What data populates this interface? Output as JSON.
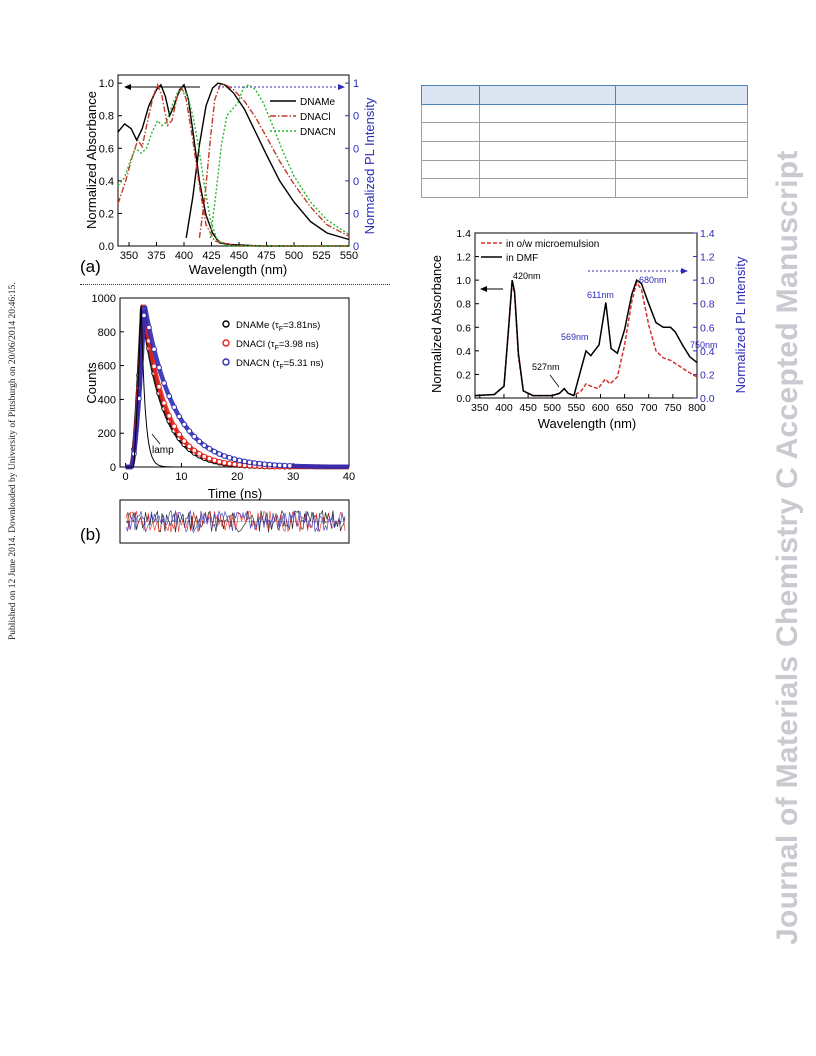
{
  "page": {
    "side_note": "Published on 12 June 2014. Downloaded by University of Pittsburgh on 20/06/2014 20:46:15.",
    "watermark": "Journal of Materials Chemistry C Accepted Manuscript"
  },
  "chart_data": [
    {
      "id": "fig-a",
      "type": "line",
      "panel_label": "(a)",
      "xlabel": "Wavelength (nm)",
      "ylabel_left": "Normalized Absorbance",
      "ylabel_right": "Normalized PL Intensity",
      "xlim": [
        340,
        550
      ],
      "ylim": [
        0,
        1.05
      ],
      "xticks": [
        350,
        375,
        400,
        425,
        450,
        475,
        500,
        525,
        550
      ],
      "yticks": [
        "0.0",
        "0.2",
        "0.4",
        "0.6",
        "0.8",
        "1.0"
      ],
      "series": [
        {
          "name": "DNAMe",
          "style": "solid",
          "color": "#000000",
          "absorbance": [
            [
              340,
              0.7
            ],
            [
              346,
              0.75
            ],
            [
              352,
              0.72
            ],
            [
              357,
              0.65
            ],
            [
              362,
              0.72
            ],
            [
              368,
              0.86
            ],
            [
              375,
              0.96
            ],
            [
              379,
              0.99
            ],
            [
              383,
              0.92
            ],
            [
              387,
              0.8
            ],
            [
              391,
              0.86
            ],
            [
              396,
              0.96
            ],
            [
              400,
              0.99
            ],
            [
              404,
              0.9
            ],
            [
              409,
              0.66
            ],
            [
              414,
              0.4
            ],
            [
              420,
              0.19
            ],
            [
              426,
              0.08
            ],
            [
              432,
              0.02
            ],
            [
              440,
              0.01
            ],
            [
              470,
              0.0
            ],
            [
              550,
              0.0
            ]
          ],
          "pl": [
            [
              402,
              0.05
            ],
            [
              408,
              0.3
            ],
            [
              414,
              0.62
            ],
            [
              420,
              0.86
            ],
            [
              426,
              0.97
            ],
            [
              431,
              1.0
            ],
            [
              437,
              0.99
            ],
            [
              445,
              0.94
            ],
            [
              455,
              0.84
            ],
            [
              465,
              0.7
            ],
            [
              475,
              0.56
            ],
            [
              487,
              0.4
            ],
            [
              500,
              0.27
            ],
            [
              515,
              0.15
            ],
            [
              530,
              0.08
            ],
            [
              550,
              0.04
            ]
          ]
        },
        {
          "name": "DNACl",
          "style": "dashdot",
          "color": "#c0392b",
          "absorbance": [
            [
              340,
              0.26
            ],
            [
              347,
              0.4
            ],
            [
              353,
              0.55
            ],
            [
              358,
              0.65
            ],
            [
              362,
              0.61
            ],
            [
              367,
              0.77
            ],
            [
              372,
              0.92
            ],
            [
              376,
              0.99
            ],
            [
              380,
              0.92
            ],
            [
              385,
              0.74
            ],
            [
              389,
              0.77
            ],
            [
              394,
              0.92
            ],
            [
              398,
              0.97
            ],
            [
              402,
              0.9
            ],
            [
              408,
              0.65
            ],
            [
              414,
              0.37
            ],
            [
              420,
              0.13
            ],
            [
              428,
              0.03
            ],
            [
              450,
              0.0
            ],
            [
              550,
              0.0
            ]
          ],
          "pl": [
            [
              414,
              0.05
            ],
            [
              419,
              0.3
            ],
            [
              424,
              0.66
            ],
            [
              428,
              0.9
            ],
            [
              433,
              0.99
            ],
            [
              438,
              0.99
            ],
            [
              445,
              0.96
            ],
            [
              455,
              0.89
            ],
            [
              465,
              0.79
            ],
            [
              475,
              0.67
            ],
            [
              487,
              0.52
            ],
            [
              500,
              0.38
            ],
            [
              515,
              0.24
            ],
            [
              530,
              0.13
            ],
            [
              550,
              0.06
            ]
          ]
        },
        {
          "name": "DNACN",
          "style": "dotted",
          "color": "#2db52d",
          "absorbance": [
            [
              340,
              0.37
            ],
            [
              346,
              0.42
            ],
            [
              351,
              0.52
            ],
            [
              356,
              0.6
            ],
            [
              361,
              0.57
            ],
            [
              366,
              0.6
            ],
            [
              371,
              0.7
            ],
            [
              376,
              0.77
            ],
            [
              380,
              0.74
            ],
            [
              384,
              0.76
            ],
            [
              389,
              0.86
            ],
            [
              394,
              0.94
            ],
            [
              398,
              0.96
            ],
            [
              403,
              0.93
            ],
            [
              408,
              0.8
            ],
            [
              413,
              0.62
            ],
            [
              418,
              0.4
            ],
            [
              424,
              0.16
            ],
            [
              430,
              0.04
            ],
            [
              440,
              0.0
            ],
            [
              550,
              0.0
            ]
          ],
          "pl": [
            [
              424,
              0.05
            ],
            [
              429,
              0.32
            ],
            [
              434,
              0.62
            ],
            [
              439,
              0.8
            ],
            [
              444,
              0.84
            ],
            [
              449,
              0.88
            ],
            [
              454,
              0.97
            ],
            [
              459,
              0.99
            ],
            [
              465,
              0.96
            ],
            [
              472,
              0.88
            ],
            [
              480,
              0.75
            ],
            [
              490,
              0.58
            ],
            [
              500,
              0.43
            ],
            [
              515,
              0.27
            ],
            [
              530,
              0.16
            ],
            [
              550,
              0.07
            ]
          ]
        }
      ]
    },
    {
      "id": "fig-b",
      "type": "scatter",
      "panel_label": "(b)",
      "xlabel": "Time (ns)",
      "ylabel": "Counts",
      "xlim": [
        -1,
        40
      ],
      "ylim": [
        0,
        1000
      ],
      "xticks": [
        0,
        10,
        20,
        30,
        40
      ],
      "yticks": [
        0,
        200,
        400,
        600,
        800,
        1000
      ],
      "annotation": "lamp",
      "series": [
        {
          "name": "DNAMe",
          "tau": "3.81",
          "color": "#000000"
        },
        {
          "name": "DNACl",
          "tau": "3.98",
          "color": "#e8231b"
        },
        {
          "name": "DNACN",
          "tau": "5.31",
          "color": "#2d2bb8"
        }
      ]
    },
    {
      "id": "fig-c",
      "type": "line",
      "xlabel": "Wavelength (nm)",
      "ylabel_left": "Normalized Absorbance",
      "ylabel_right": "Normalized PL Intensity",
      "xlim": [
        340,
        800
      ],
      "ylim": [
        0,
        1.4
      ],
      "xticks": [
        350,
        400,
        450,
        500,
        550,
        600,
        650,
        700,
        750,
        800
      ],
      "yticks": [
        "0.0",
        "0.2",
        "0.4",
        "0.6",
        "0.8",
        "1.0",
        "1.2",
        "1.4"
      ],
      "peak_labels": [
        "420nm",
        "527nm",
        "569nm",
        "611nm",
        "680nm",
        "750nm"
      ],
      "series": [
        {
          "name": "in o/w microemulsion",
          "style": "dashed",
          "color": "#d32f2f",
          "points": [
            [
              340,
              0.02
            ],
            [
              380,
              0.03
            ],
            [
              400,
              0.1
            ],
            [
              410,
              0.6
            ],
            [
              417,
              0.99
            ],
            [
              422,
              0.88
            ],
            [
              430,
              0.35
            ],
            [
              440,
              0.06
            ],
            [
              460,
              0.02
            ],
            [
              500,
              0.02
            ],
            [
              515,
              0.04
            ],
            [
              525,
              0.08
            ],
            [
              533,
              0.04
            ],
            [
              545,
              0.02
            ],
            [
              560,
              0.06
            ],
            [
              570,
              0.12
            ],
            [
              580,
              0.1
            ],
            [
              595,
              0.08
            ],
            [
              610,
              0.16
            ],
            [
              620,
              0.12
            ],
            [
              635,
              0.18
            ],
            [
              650,
              0.45
            ],
            [
              665,
              0.82
            ],
            [
              675,
              0.98
            ],
            [
              685,
              0.92
            ],
            [
              700,
              0.62
            ],
            [
              715,
              0.4
            ],
            [
              730,
              0.34
            ],
            [
              745,
              0.32
            ],
            [
              760,
              0.28
            ],
            [
              775,
              0.24
            ],
            [
              790,
              0.2
            ],
            [
              800,
              0.18
            ]
          ]
        },
        {
          "name": "in DMF",
          "style": "solid",
          "color": "#000000",
          "points": [
            [
              340,
              0.02
            ],
            [
              380,
              0.03
            ],
            [
              400,
              0.1
            ],
            [
              410,
              0.62
            ],
            [
              417,
              1.0
            ],
            [
              422,
              0.9
            ],
            [
              430,
              0.38
            ],
            [
              440,
              0.06
            ],
            [
              460,
              0.02
            ],
            [
              500,
              0.02
            ],
            [
              515,
              0.04
            ],
            [
              525,
              0.08
            ],
            [
              533,
              0.04
            ],
            [
              545,
              0.02
            ],
            [
              560,
              0.25
            ],
            [
              570,
              0.4
            ],
            [
              580,
              0.36
            ],
            [
              597,
              0.45
            ],
            [
              611,
              0.81
            ],
            [
              622,
              0.42
            ],
            [
              635,
              0.38
            ],
            [
              650,
              0.58
            ],
            [
              665,
              0.88
            ],
            [
              675,
              1.0
            ],
            [
              685,
              0.97
            ],
            [
              700,
              0.8
            ],
            [
              715,
              0.64
            ],
            [
              730,
              0.6
            ],
            [
              745,
              0.6
            ],
            [
              755,
              0.56
            ],
            [
              770,
              0.45
            ],
            [
              785,
              0.35
            ],
            [
              800,
              0.3
            ]
          ]
        }
      ]
    }
  ],
  "table": {
    "rows": 6,
    "cols": 3,
    "cells": []
  }
}
